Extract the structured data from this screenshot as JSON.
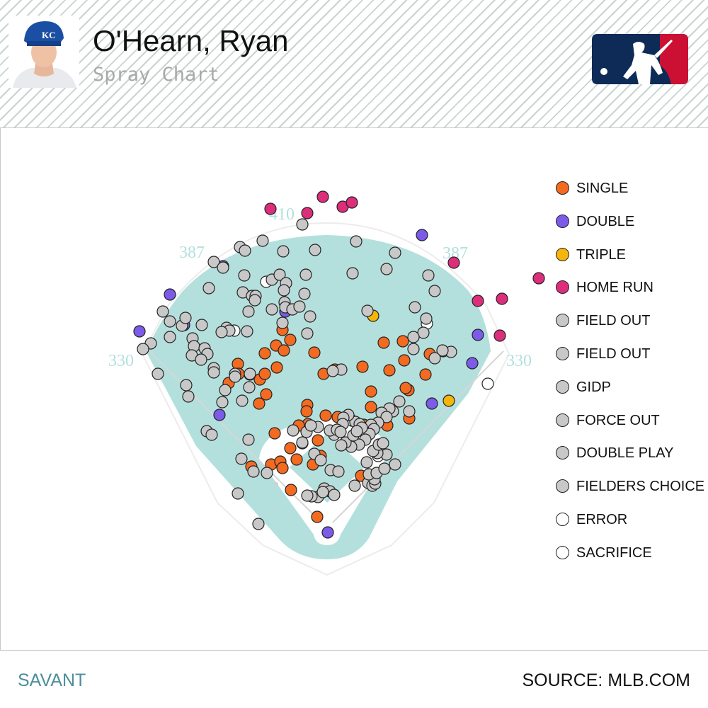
{
  "header": {
    "player_name": "O'Hearn, Ryan",
    "subtitle": "Spray Chart",
    "team_logo_icon": "kansas-city-royals-cap-icon",
    "league_logo_icon": "mlb-logo-icon"
  },
  "colors": {
    "field_fill": "#b3e0dd",
    "foul_line": "#d8d8d8",
    "distance_label": "#b3e0dd",
    "single": "#f26b21",
    "double": "#7b5be8",
    "triple": "#f5b50b",
    "home_run": "#dc2e7a",
    "out": "#c8c8c8",
    "error": "#ffffff",
    "mlb_blue": "#0d2b56",
    "mlb_red": "#cc1034",
    "brand": "#4b8f9b"
  },
  "chart_data": {
    "type": "scatter",
    "title": "Spray Chart",
    "distance_markers": [
      "410",
      "387",
      "387",
      "330",
      "330"
    ],
    "legend": [
      {
        "key": "single",
        "label": "SINGLE"
      },
      {
        "key": "double",
        "label": "DOUBLE"
      },
      {
        "key": "triple",
        "label": "TRIPLE"
      },
      {
        "key": "home_run",
        "label": "HOME RUN"
      },
      {
        "key": "out",
        "label": "FIELD OUT"
      },
      {
        "key": "out",
        "label": "FIELD OUT"
      },
      {
        "key": "out",
        "label": "GIDP"
      },
      {
        "key": "out",
        "label": "FORCE OUT"
      },
      {
        "key": "out",
        "label": "DOUBLE PLAY"
      },
      {
        "key": "out",
        "label": "FIELDERS CHOICE OUT"
      },
      {
        "key": "error",
        "label": "ERROR"
      },
      {
        "key": "error",
        "label": "SACRIFICE"
      }
    ],
    "series": [
      {
        "key": "home_run",
        "points": [
          [
            381,
            295
          ],
          [
            433,
            301
          ],
          [
            455,
            278
          ],
          [
            483,
            292
          ],
          [
            496,
            286
          ],
          [
            640,
            371
          ],
          [
            760,
            393
          ],
          [
            708,
            422
          ],
          [
            674,
            425
          ],
          [
            705,
            474
          ]
        ]
      },
      {
        "key": "double",
        "points": [
          [
            196,
            468
          ],
          [
            239,
            416
          ],
          [
            314,
            376
          ],
          [
            402,
            440
          ],
          [
            259,
            459
          ],
          [
            309,
            586
          ],
          [
            595,
            332
          ],
          [
            674,
            473
          ],
          [
            666,
            513
          ],
          [
            609,
            570
          ],
          [
            462,
            752
          ]
        ]
      },
      {
        "key": "triple",
        "points": [
          [
            526,
            446
          ],
          [
            633,
            566
          ]
        ]
      },
      {
        "key": "error",
        "points": [
          [
            375,
            398
          ],
          [
            330,
            467
          ],
          [
            602,
            457
          ],
          [
            688,
            542
          ],
          [
            533,
            644
          ]
        ]
      },
      {
        "key": "single",
        "points": [
          [
            398,
            466
          ],
          [
            409,
            480
          ],
          [
            389,
            488
          ],
          [
            400,
            495
          ],
          [
            373,
            499
          ],
          [
            443,
            498
          ],
          [
            335,
            514
          ],
          [
            336,
            528
          ],
          [
            366,
            536
          ],
          [
            390,
            519
          ],
          [
            373,
            528
          ],
          [
            352,
            529
          ],
          [
            322,
            541
          ],
          [
            365,
            570
          ],
          [
            375,
            557
          ],
          [
            433,
            572
          ],
          [
            432,
            581
          ],
          [
            459,
            587
          ],
          [
            434,
            599
          ],
          [
            421,
            601
          ],
          [
            476,
            589
          ],
          [
            387,
            612
          ],
          [
            426,
            626
          ],
          [
            409,
            633
          ],
          [
            448,
            622
          ],
          [
            452,
            644
          ],
          [
            441,
            656
          ],
          [
            418,
            649
          ],
          [
            382,
            656
          ],
          [
            395,
            652
          ],
          [
            398,
            661
          ],
          [
            354,
            659
          ],
          [
            410,
            692
          ],
          [
            447,
            730
          ],
          [
            511,
            518
          ],
          [
            456,
            528
          ],
          [
            472,
            522
          ],
          [
            523,
            553
          ],
          [
            549,
            523
          ],
          [
            570,
            509
          ],
          [
            576,
            551
          ],
          [
            572,
            548
          ],
          [
            600,
            529
          ],
          [
            606,
            500
          ],
          [
            568,
            482
          ],
          [
            541,
            484
          ],
          [
            509,
            672
          ],
          [
            513,
            600
          ],
          [
            523,
            575
          ],
          [
            577,
            591
          ],
          [
            546,
            601
          ]
        ]
      },
      {
        "key": "out",
        "points": [
          [
            426,
            317
          ],
          [
            444,
            353
          ],
          [
            370,
            340
          ],
          [
            338,
            349
          ],
          [
            345,
            354
          ],
          [
            399,
            355
          ],
          [
            502,
            341
          ],
          [
            557,
            357
          ],
          [
            301,
            370
          ],
          [
            314,
            378
          ],
          [
            344,
            389
          ],
          [
            383,
            395
          ],
          [
            394,
            388
          ],
          [
            431,
            388
          ],
          [
            403,
            400
          ],
          [
            400,
            410
          ],
          [
            342,
            413
          ],
          [
            355,
            418
          ],
          [
            360,
            418
          ],
          [
            359,
            424
          ],
          [
            401,
            427
          ],
          [
            402,
            434
          ],
          [
            429,
            415
          ],
          [
            383,
            437
          ],
          [
            412,
            437
          ],
          [
            422,
            433
          ],
          [
            437,
            447
          ],
          [
            350,
            440
          ],
          [
            433,
            471
          ],
          [
            398,
            456
          ],
          [
            348,
            468
          ],
          [
            319,
            463
          ],
          [
            323,
            467
          ],
          [
            312,
            469
          ],
          [
            294,
            407
          ],
          [
            229,
            440
          ],
          [
            239,
            454
          ],
          [
            256,
            460
          ],
          [
            261,
            449
          ],
          [
            284,
            459
          ],
          [
            212,
            485
          ],
          [
            201,
            493
          ],
          [
            239,
            476
          ],
          [
            271,
            478
          ],
          [
            273,
            489
          ],
          [
            270,
            502
          ],
          [
            288,
            492
          ],
          [
            292,
            500
          ],
          [
            283,
            508
          ],
          [
            301,
            520
          ],
          [
            301,
            526
          ],
          [
            331,
            528
          ],
          [
            331,
            532
          ],
          [
            352,
            528
          ],
          [
            222,
            528
          ],
          [
            262,
            544
          ],
          [
            265,
            560
          ],
          [
            317,
            551
          ],
          [
            313,
            568
          ],
          [
            351,
            547
          ],
          [
            341,
            566
          ],
          [
            291,
            609
          ],
          [
            298,
            614
          ],
          [
            350,
            621
          ],
          [
            340,
            648
          ],
          [
            357,
            666
          ],
          [
            376,
            668
          ],
          [
            335,
            697
          ],
          [
            364,
            740
          ],
          [
            497,
            386
          ],
          [
            545,
            380
          ],
          [
            518,
            439
          ],
          [
            585,
            434
          ],
          [
            601,
            450
          ],
          [
            604,
            389
          ],
          [
            613,
            411
          ],
          [
            597,
            470
          ],
          [
            583,
            476
          ],
          [
            583,
            493
          ],
          [
            625,
            496
          ],
          [
            636,
            497
          ],
          [
            624,
            495
          ],
          [
            613,
            506
          ],
          [
            481,
            522
          ],
          [
            469,
            524
          ],
          [
            554,
            581
          ],
          [
            563,
            567
          ],
          [
            577,
            581
          ],
          [
            549,
            577
          ],
          [
            538,
            583
          ],
          [
            545,
            589
          ],
          [
            533,
            597
          ],
          [
            523,
            600
          ],
          [
            527,
            606
          ],
          [
            521,
            613
          ],
          [
            515,
            621
          ],
          [
            506,
            628
          ],
          [
            495,
            631
          ],
          [
            487,
            625
          ],
          [
            481,
            629
          ],
          [
            471,
            614
          ],
          [
            465,
            608
          ],
          [
            448,
            603
          ],
          [
            432,
            610
          ],
          [
            438,
            601
          ],
          [
            413,
            608
          ],
          [
            426,
            625
          ],
          [
            443,
            641
          ],
          [
            452,
            650
          ],
          [
            466,
            664
          ],
          [
            477,
            666
          ],
          [
            500,
            686
          ],
          [
            519,
            682
          ],
          [
            525,
            686
          ],
          [
            529,
            683
          ],
          [
            528,
            677
          ],
          [
            520,
            670
          ],
          [
            531,
            668
          ],
          [
            542,
            662
          ],
          [
            557,
            656
          ],
          [
            545,
            642
          ],
          [
            532,
            640
          ],
          [
            526,
            637
          ],
          [
            534,
            628
          ],
          [
            540,
            626
          ],
          [
            517,
            653
          ],
          [
            448,
            702
          ],
          [
            439,
            701
          ],
          [
            457,
            690
          ],
          [
            465,
            694
          ],
          [
            471,
            699
          ],
          [
            433,
            700
          ],
          [
            455,
            695
          ],
          [
            496,
            594
          ],
          [
            501,
            596
          ],
          [
            507,
            599
          ],
          [
            510,
            604
          ],
          [
            491,
            586
          ],
          [
            484,
            590
          ],
          [
            483,
            599
          ],
          [
            475,
            607
          ],
          [
            480,
            610
          ],
          [
            498,
            615
          ],
          [
            503,
            609
          ]
        ]
      }
    ]
  },
  "footer": {
    "brand": "SAVANT",
    "source": "SOURCE: MLB.COM"
  }
}
